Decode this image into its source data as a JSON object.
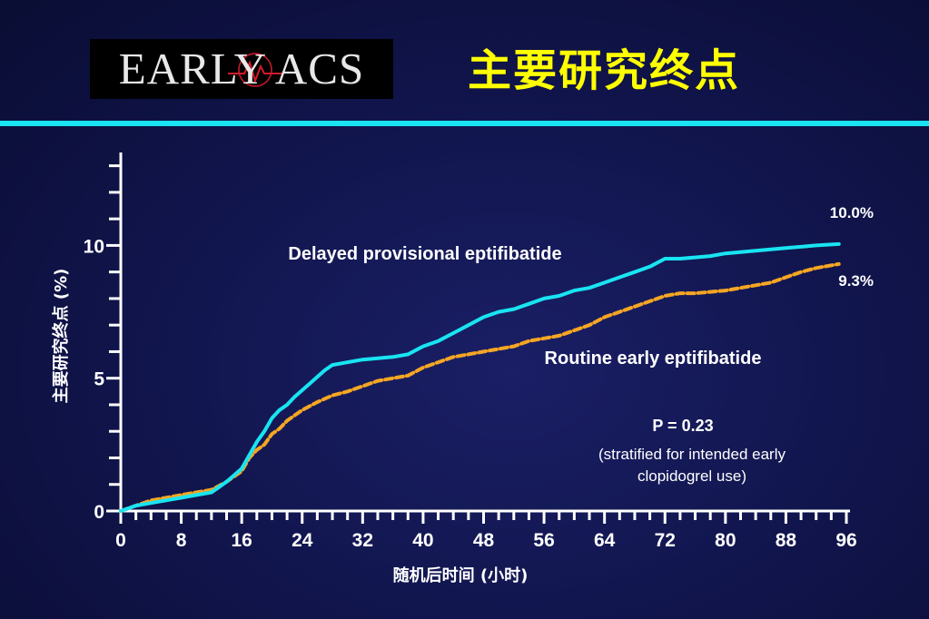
{
  "header": {
    "logo_text": "EARLY ACS",
    "title": "主要研究终点"
  },
  "colors": {
    "accent_bar": "#19e4f2",
    "delayed_series": "#19e4f2",
    "routine_series": "#f5a623",
    "title": "#ffff00",
    "text": "#ffffff"
  },
  "chart_data": {
    "type": "line",
    "xlabel": "随机后时间 (小时)",
    "ylabel": "主要研究终点 (%)",
    "xlim": [
      0,
      96
    ],
    "ylim": [
      0,
      13.5
    ],
    "x_ticks": [
      0,
      8,
      16,
      24,
      32,
      40,
      48,
      56,
      64,
      72,
      80,
      88,
      96
    ],
    "y_ticks": [
      0,
      5,
      10
    ],
    "series": [
      {
        "name": "Delayed provisional eptifibatide",
        "style": "solid",
        "color": "#19e4f2",
        "end_label": "10.0%",
        "points": [
          [
            0,
            0
          ],
          [
            2,
            0.2
          ],
          [
            4,
            0.3
          ],
          [
            6,
            0.4
          ],
          [
            8,
            0.5
          ],
          [
            10,
            0.6
          ],
          [
            12,
            0.7
          ],
          [
            13,
            0.9
          ],
          [
            14,
            1.1
          ],
          [
            16,
            1.6
          ],
          [
            17,
            2.1
          ],
          [
            18,
            2.6
          ],
          [
            19,
            3.0
          ],
          [
            20,
            3.5
          ],
          [
            21,
            3.8
          ],
          [
            22,
            4.0
          ],
          [
            23,
            4.3
          ],
          [
            25,
            4.8
          ],
          [
            27,
            5.3
          ],
          [
            28,
            5.5
          ],
          [
            30,
            5.6
          ],
          [
            32,
            5.7
          ],
          [
            34,
            5.75
          ],
          [
            36,
            5.8
          ],
          [
            38,
            5.9
          ],
          [
            40,
            6.2
          ],
          [
            42,
            6.4
          ],
          [
            44,
            6.7
          ],
          [
            46,
            7.0
          ],
          [
            48,
            7.3
          ],
          [
            50,
            7.5
          ],
          [
            52,
            7.6
          ],
          [
            54,
            7.8
          ],
          [
            56,
            8.0
          ],
          [
            58,
            8.1
          ],
          [
            60,
            8.3
          ],
          [
            62,
            8.4
          ],
          [
            64,
            8.6
          ],
          [
            66,
            8.8
          ],
          [
            68,
            9.0
          ],
          [
            70,
            9.2
          ],
          [
            72,
            9.5
          ],
          [
            74,
            9.5
          ],
          [
            76,
            9.55
          ],
          [
            78,
            9.6
          ],
          [
            80,
            9.7
          ],
          [
            82,
            9.75
          ],
          [
            84,
            9.8
          ],
          [
            86,
            9.85
          ],
          [
            88,
            9.9
          ],
          [
            90,
            9.95
          ],
          [
            92,
            10.0
          ],
          [
            95,
            10.05
          ]
        ]
      },
      {
        "name": "Routine early eptifibatide",
        "style": "dashed",
        "color": "#f5a623",
        "end_label": "9.3%",
        "points": [
          [
            0,
            0
          ],
          [
            2,
            0.2
          ],
          [
            4,
            0.4
          ],
          [
            6,
            0.5
          ],
          [
            8,
            0.6
          ],
          [
            10,
            0.7
          ],
          [
            12,
            0.8
          ],
          [
            14,
            1.1
          ],
          [
            16,
            1.5
          ],
          [
            17,
            2.0
          ],
          [
            18,
            2.3
          ],
          [
            19,
            2.5
          ],
          [
            20,
            2.9
          ],
          [
            21,
            3.1
          ],
          [
            22,
            3.4
          ],
          [
            23,
            3.6
          ],
          [
            24,
            3.8
          ],
          [
            26,
            4.1
          ],
          [
            28,
            4.35
          ],
          [
            30,
            4.5
          ],
          [
            32,
            4.7
          ],
          [
            34,
            4.9
          ],
          [
            36,
            5.0
          ],
          [
            38,
            5.1
          ],
          [
            40,
            5.4
          ],
          [
            42,
            5.6
          ],
          [
            44,
            5.8
          ],
          [
            46,
            5.9
          ],
          [
            48,
            6.0
          ],
          [
            50,
            6.1
          ],
          [
            52,
            6.2
          ],
          [
            54,
            6.4
          ],
          [
            56,
            6.5
          ],
          [
            58,
            6.6
          ],
          [
            60,
            6.8
          ],
          [
            62,
            7.0
          ],
          [
            64,
            7.3
          ],
          [
            66,
            7.5
          ],
          [
            68,
            7.7
          ],
          [
            70,
            7.9
          ],
          [
            72,
            8.1
          ],
          [
            74,
            8.2
          ],
          [
            76,
            8.2
          ],
          [
            78,
            8.25
          ],
          [
            80,
            8.3
          ],
          [
            82,
            8.4
          ],
          [
            84,
            8.5
          ],
          [
            86,
            8.6
          ],
          [
            88,
            8.8
          ],
          [
            90,
            9.0
          ],
          [
            92,
            9.15
          ],
          [
            95,
            9.3
          ]
        ]
      }
    ],
    "annotations": {
      "p_value": "P = 0.23",
      "note_line1": "(stratified for intended early",
      "note_line2": "clopidogrel use)"
    }
  }
}
